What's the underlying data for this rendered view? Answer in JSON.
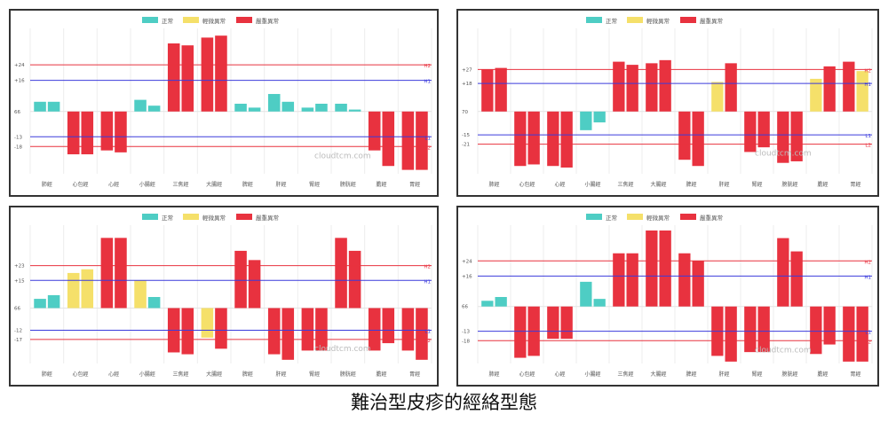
{
  "caption": "難治型皮疹的經絡型態",
  "legend": [
    {
      "label": "正常",
      "color": "#4ecdc4"
    },
    {
      "label": "輕微異常",
      "color": "#f5e06a"
    },
    {
      "label": "嚴重異常",
      "color": "#e8323f"
    }
  ],
  "watermark": "cloudtcm.com",
  "colors": {
    "normal": "#4ecdc4",
    "mild": "#f5e06a",
    "severe": "#e8323f",
    "hi_line": "#e8323f",
    "mid_line": "#3b3bdc"
  },
  "chart_data": [
    {
      "type": "bar",
      "categories": [
        "肺經",
        "心包經",
        "心經",
        "小腸經",
        "三焦經",
        "大腸經",
        "脾經",
        "肝經",
        "腎經",
        "膀胱經",
        "膽經",
        "胃經"
      ],
      "zero_label": "66",
      "ylim": [
        -32,
        40
      ],
      "reference_lines": [
        {
          "value": 24,
          "label": "+24",
          "tag": "H2",
          "color": "#e8323f"
        },
        {
          "value": 16,
          "label": "+16",
          "tag": "H1",
          "color": "#3b3bdc"
        },
        {
          "value": -13,
          "label": "-13",
          "tag": "L1",
          "color": "#3b3bdc"
        },
        {
          "value": -18,
          "label": "-18",
          "tag": "L2",
          "color": "#e8323f"
        }
      ],
      "series": [
        {
          "values": [
            5,
            -22,
            -20,
            6,
            35,
            38,
            4,
            9,
            2,
            4,
            -20,
            -30
          ]
        },
        {
          "values": [
            5,
            -22,
            -21,
            3,
            34,
            39,
            2,
            5,
            4,
            1,
            -28,
            -30
          ]
        }
      ],
      "status": [
        [
          "normal",
          "severe",
          "severe",
          "normal",
          "severe",
          "severe",
          "normal",
          "normal",
          "normal",
          "normal",
          "severe",
          "severe"
        ],
        [
          "normal",
          "severe",
          "severe",
          "normal",
          "severe",
          "severe",
          "normal",
          "normal",
          "normal",
          "normal",
          "severe",
          "severe"
        ]
      ]
    },
    {
      "type": "bar",
      "categories": [
        "肺經",
        "心包經",
        "心經",
        "小腸經",
        "三焦經",
        "大腸經",
        "脾經",
        "肝經",
        "腎經",
        "膀胱經",
        "膽經",
        "胃經"
      ],
      "zero_label": "70",
      "ylim": [
        -40,
        50
      ],
      "reference_lines": [
        {
          "value": 27,
          "label": "+27",
          "tag": "H2",
          "color": "#e8323f"
        },
        {
          "value": 18,
          "label": "+18",
          "tag": "H1",
          "color": "#3b3bdc"
        },
        {
          "value": -15,
          "label": "-15",
          "tag": "L1",
          "color": "#3b3bdc"
        },
        {
          "value": -21,
          "label": "-21",
          "tag": "L2",
          "color": "#e8323f"
        }
      ],
      "series": [
        {
          "values": [
            27,
            -35,
            -35,
            -12,
            32,
            31,
            -31,
            19,
            -26,
            -33,
            21,
            32
          ]
        },
        {
          "values": [
            28,
            -34,
            -36,
            -7,
            30,
            33,
            -35,
            31,
            -23,
            -32,
            29,
            26
          ]
        }
      ],
      "status": [
        [
          "severe",
          "severe",
          "severe",
          "normal",
          "severe",
          "severe",
          "severe",
          "mild",
          "severe",
          "severe",
          "mild",
          "severe"
        ],
        [
          "severe",
          "severe",
          "severe",
          "normal",
          "severe",
          "severe",
          "severe",
          "severe",
          "severe",
          "severe",
          "severe",
          "mild"
        ]
      ]
    },
    {
      "type": "bar",
      "categories": [
        "肺經",
        "心包經",
        "心經",
        "小腸經",
        "三焦經",
        "大腸經",
        "脾經",
        "肝經",
        "腎經",
        "膀胱經",
        "膽經",
        "胃經"
      ],
      "zero_label": "66",
      "ylim": [
        -30,
        42
      ],
      "reference_lines": [
        {
          "value": 23,
          "label": "+23",
          "tag": "H2",
          "color": "#e8323f"
        },
        {
          "value": 15,
          "label": "+15",
          "tag": "H1",
          "color": "#3b3bdc"
        },
        {
          "value": -12,
          "label": "-12",
          "tag": "L1",
          "color": "#3b3bdc"
        },
        {
          "value": -17,
          "label": "-17",
          "tag": "L2",
          "color": "#e8323f"
        }
      ],
      "series": [
        {
          "values": [
            5,
            19,
            38,
            15,
            -24,
            -16,
            31,
            -25,
            -23,
            38,
            -23,
            -23
          ]
        },
        {
          "values": [
            7,
            21,
            38,
            6,
            -25,
            -22,
            26,
            -28,
            -23,
            31,
            -19,
            -28
          ]
        }
      ],
      "status": [
        [
          "normal",
          "mild",
          "severe",
          "mild",
          "severe",
          "mild",
          "severe",
          "severe",
          "severe",
          "severe",
          "severe",
          "severe"
        ],
        [
          "normal",
          "mild",
          "severe",
          "normal",
          "severe",
          "severe",
          "severe",
          "severe",
          "severe",
          "severe",
          "severe",
          "severe"
        ]
      ]
    },
    {
      "type": "bar",
      "categories": [
        "肺經",
        "心包經",
        "心經",
        "小腸經",
        "三焦經",
        "大腸經",
        "脾經",
        "肝經",
        "腎經",
        "膀胱經",
        "膽經",
        "胃經"
      ],
      "zero_label": "66",
      "ylim": [
        -30,
        40
      ],
      "reference_lines": [
        {
          "value": 24,
          "label": "+24",
          "tag": "H2",
          "color": "#e8323f"
        },
        {
          "value": 16,
          "label": "+16",
          "tag": "H1",
          "color": "#3b3bdc"
        },
        {
          "value": -13,
          "label": "-13",
          "tag": "L1",
          "color": "#3b3bdc"
        },
        {
          "value": -18,
          "label": "-18",
          "tag": "L2",
          "color": "#e8323f"
        }
      ],
      "series": [
        {
          "values": [
            3,
            -27,
            -17,
            13,
            28,
            40,
            28,
            -26,
            -24,
            36,
            -25,
            -29
          ]
        },
        {
          "values": [
            5,
            -26,
            -17,
            4,
            28,
            40,
            24,
            -29,
            -24,
            29,
            -20,
            -29
          ]
        }
      ],
      "status": [
        [
          "normal",
          "severe",
          "severe",
          "normal",
          "severe",
          "severe",
          "severe",
          "severe",
          "severe",
          "severe",
          "severe",
          "severe"
        ],
        [
          "normal",
          "severe",
          "severe",
          "normal",
          "severe",
          "severe",
          "severe",
          "severe",
          "severe",
          "severe",
          "severe",
          "severe"
        ]
      ]
    }
  ]
}
